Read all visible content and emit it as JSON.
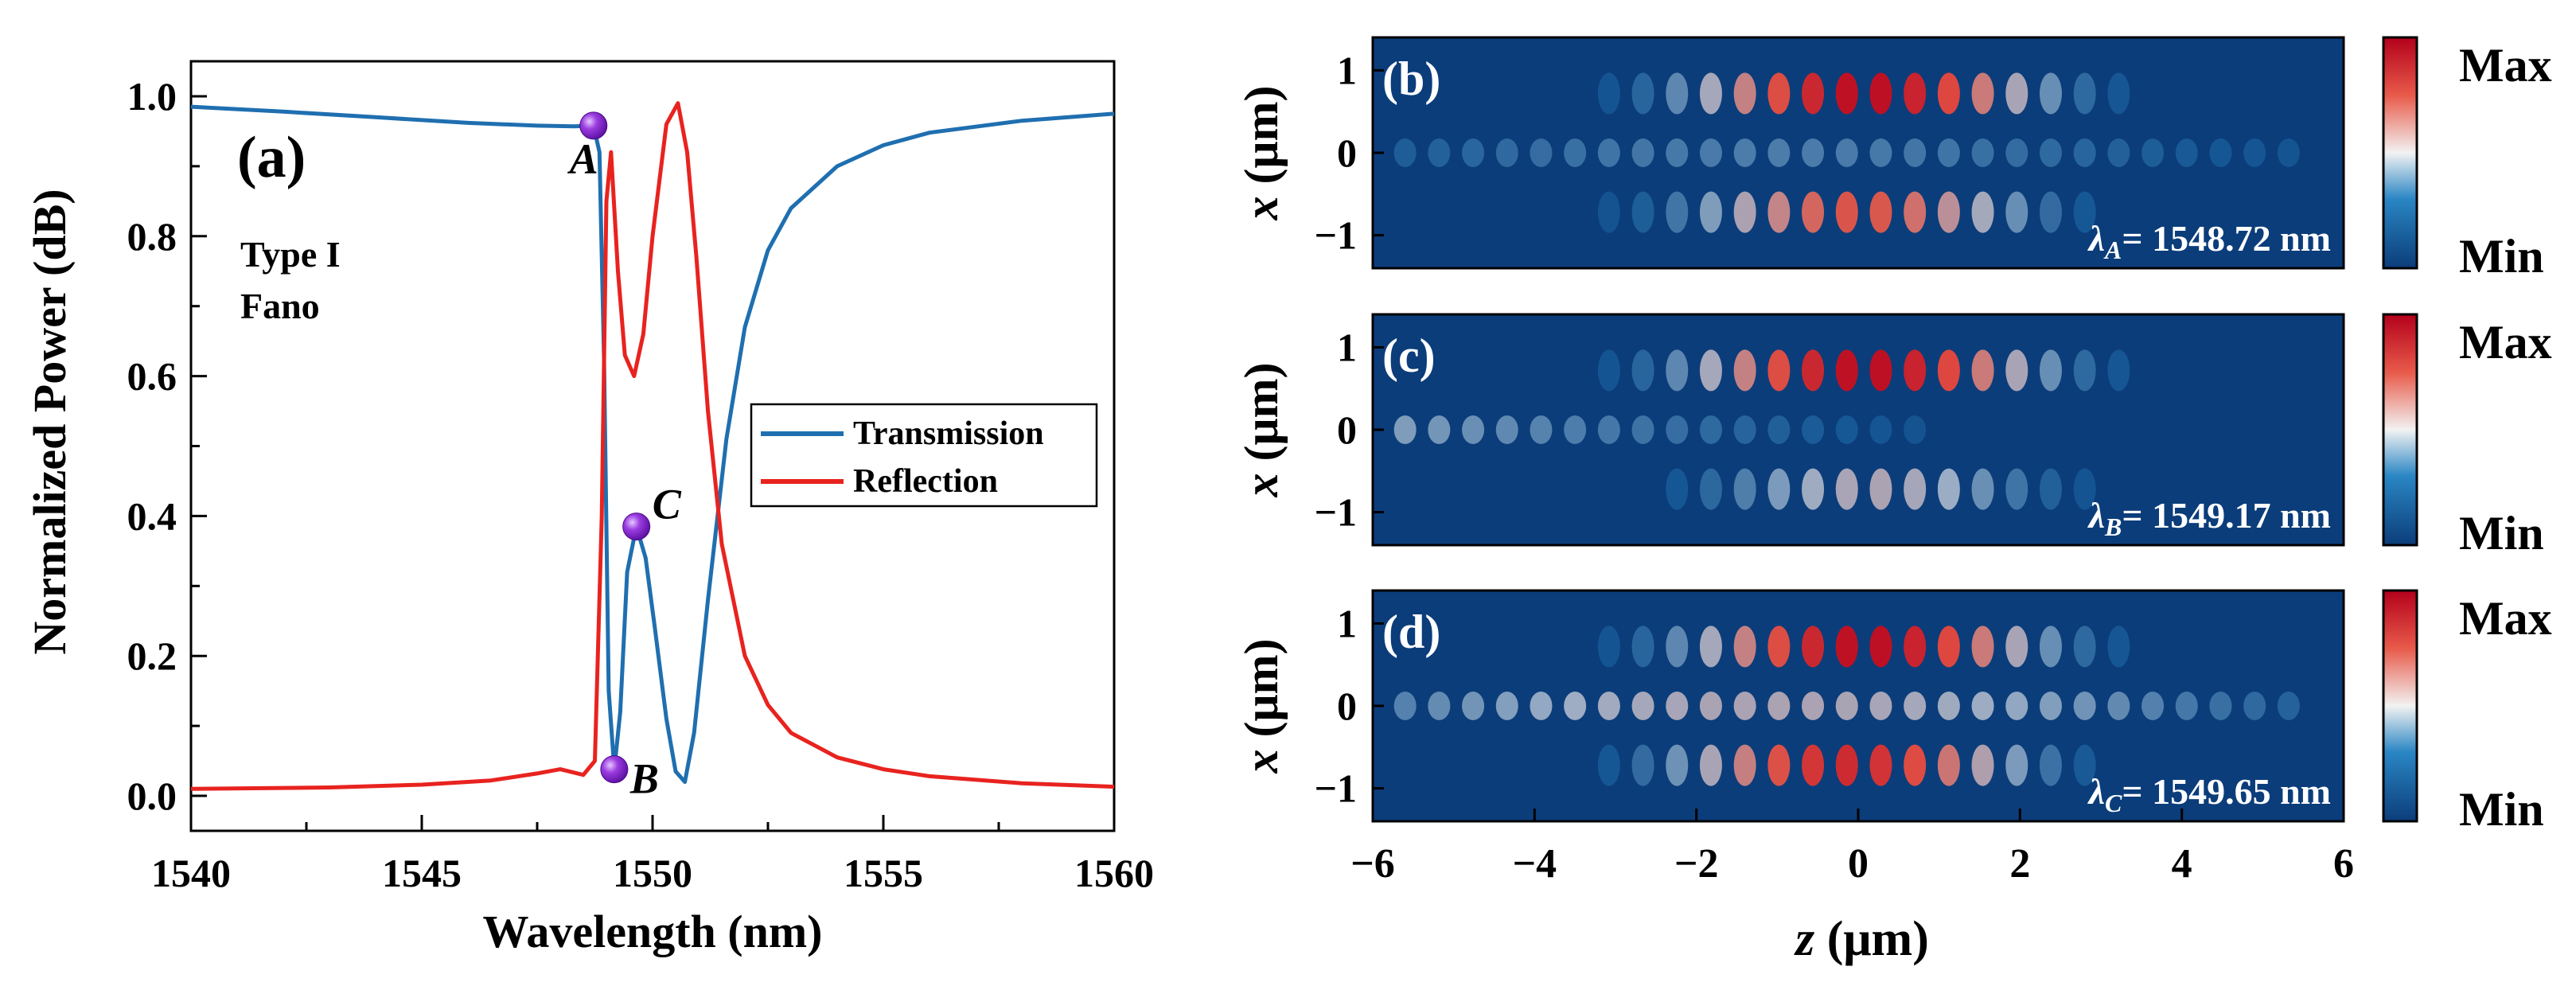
{
  "chart_data": [
    {
      "type": "line",
      "panel": "(a)",
      "xlabel": "Wavelength (nm)",
      "ylabel": "Normalized Power (dB)",
      "xlim": [
        1540,
        1560
      ],
      "ylim": [
        -0.05,
        1.05
      ],
      "xticks": [
        1540,
        1545,
        1550,
        1555,
        1560
      ],
      "yticks": [
        0.0,
        0.2,
        0.4,
        0.6,
        0.8,
        1.0
      ],
      "xtick_labels": [
        "1540",
        "1545",
        "1550",
        "1555",
        "1560"
      ],
      "ytick_labels": [
        "0.0",
        "0.2",
        "0.4",
        "0.6",
        "0.8",
        "1.0"
      ],
      "annotation": [
        "Type I",
        "Fano"
      ],
      "legend_position": "right",
      "series": [
        {
          "name": "Transmission",
          "color": "#1f6fb0",
          "x": [
            1540,
            1542,
            1544,
            1546,
            1547.5,
            1548.3,
            1548.72,
            1548.85,
            1548.95,
            1549.05,
            1549.17,
            1549.3,
            1549.45,
            1549.65,
            1549.85,
            1550.05,
            1550.3,
            1550.5,
            1550.7,
            1550.9,
            1551.2,
            1551.6,
            1552.0,
            1552.5,
            1553,
            1554,
            1555,
            1556,
            1558,
            1560
          ],
          "y": [
            0.985,
            0.978,
            0.97,
            0.962,
            0.958,
            0.957,
            0.958,
            0.92,
            0.62,
            0.15,
            0.038,
            0.12,
            0.32,
            0.385,
            0.34,
            0.24,
            0.11,
            0.035,
            0.02,
            0.09,
            0.28,
            0.51,
            0.67,
            0.78,
            0.84,
            0.9,
            0.93,
            0.948,
            0.965,
            0.975
          ]
        },
        {
          "name": "Reflection",
          "color": "#e8231f",
          "x": [
            1540,
            1543,
            1545,
            1546.5,
            1547.5,
            1548.0,
            1548.5,
            1548.75,
            1548.9,
            1549.0,
            1549.1,
            1549.25,
            1549.4,
            1549.6,
            1549.8,
            1550.0,
            1550.3,
            1550.55,
            1550.75,
            1550.95,
            1551.2,
            1551.5,
            1552.0,
            1552.5,
            1553,
            1554,
            1555,
            1556,
            1558,
            1560
          ],
          "y": [
            0.01,
            0.012,
            0.016,
            0.022,
            0.032,
            0.038,
            0.03,
            0.05,
            0.4,
            0.85,
            0.92,
            0.75,
            0.63,
            0.6,
            0.66,
            0.8,
            0.96,
            0.99,
            0.92,
            0.77,
            0.55,
            0.36,
            0.2,
            0.13,
            0.09,
            0.055,
            0.038,
            0.028,
            0.018,
            0.013
          ]
        }
      ],
      "points": [
        {
          "label": "A",
          "x": 1548.72,
          "y": 0.958
        },
        {
          "label": "B",
          "x": 1549.17,
          "y": 0.038
        },
        {
          "label": "C",
          "x": 1549.65,
          "y": 0.385
        }
      ]
    },
    {
      "type": "heatmap",
      "xlabel": "z (μm)",
      "ylabel": "x (μm)",
      "xlim": [
        -6,
        6
      ],
      "ylim": [
        -1.4,
        1.4
      ],
      "xticks": [
        -6,
        -4,
        -2,
        0,
        2,
        4,
        6
      ],
      "xtick_labels": [
        "−6",
        "−4",
        "−2",
        "0",
        "2",
        "4",
        "6"
      ],
      "yticks": [
        1,
        0,
        -1
      ],
      "ytick_labels": [
        "1",
        "0",
        "−1"
      ],
      "colorbar": {
        "max_label": "Max",
        "min_label": "Min"
      },
      "panels": [
        {
          "label": "(b)",
          "lambda_sub": "A",
          "lambda_text": "= 1548.72 nm"
        },
        {
          "label": "(c)",
          "lambda_sub": "B",
          "lambda_text": "= 1549.17 nm"
        },
        {
          "label": "(d)",
          "lambda_sub": "C",
          "lambda_text": "= 1549.65 nm"
        }
      ]
    }
  ]
}
